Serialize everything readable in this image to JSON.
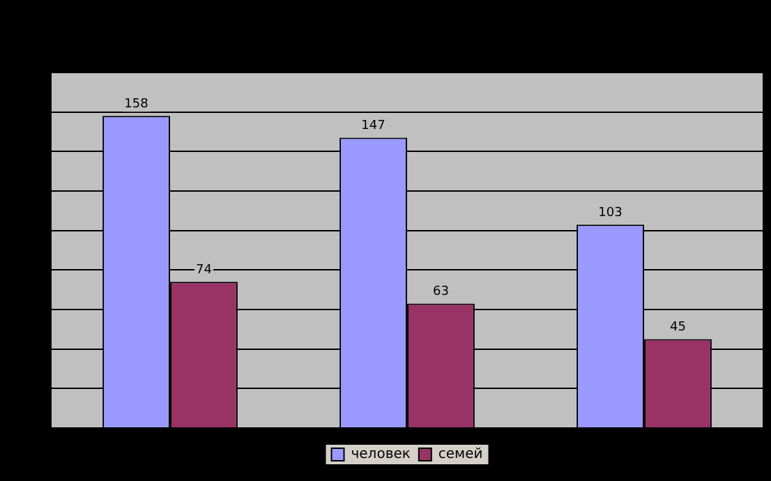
{
  "chart_data": {
    "type": "bar",
    "categories": [
      null,
      null,
      null
    ],
    "series": [
      {
        "name": "человек",
        "color": "#9999ff",
        "values": [
          158,
          147,
          103
        ]
      },
      {
        "name": "семей",
        "color": "#993366",
        "values": [
          74,
          63,
          45
        ]
      }
    ],
    "ylim": [
      0,
      180
    ],
    "yticks": [
      0,
      20,
      40,
      60,
      80,
      100,
      120,
      140,
      160,
      180
    ],
    "grid": "y",
    "legend": "bottom",
    "tick_labels": false,
    "data_labels": true
  }
}
